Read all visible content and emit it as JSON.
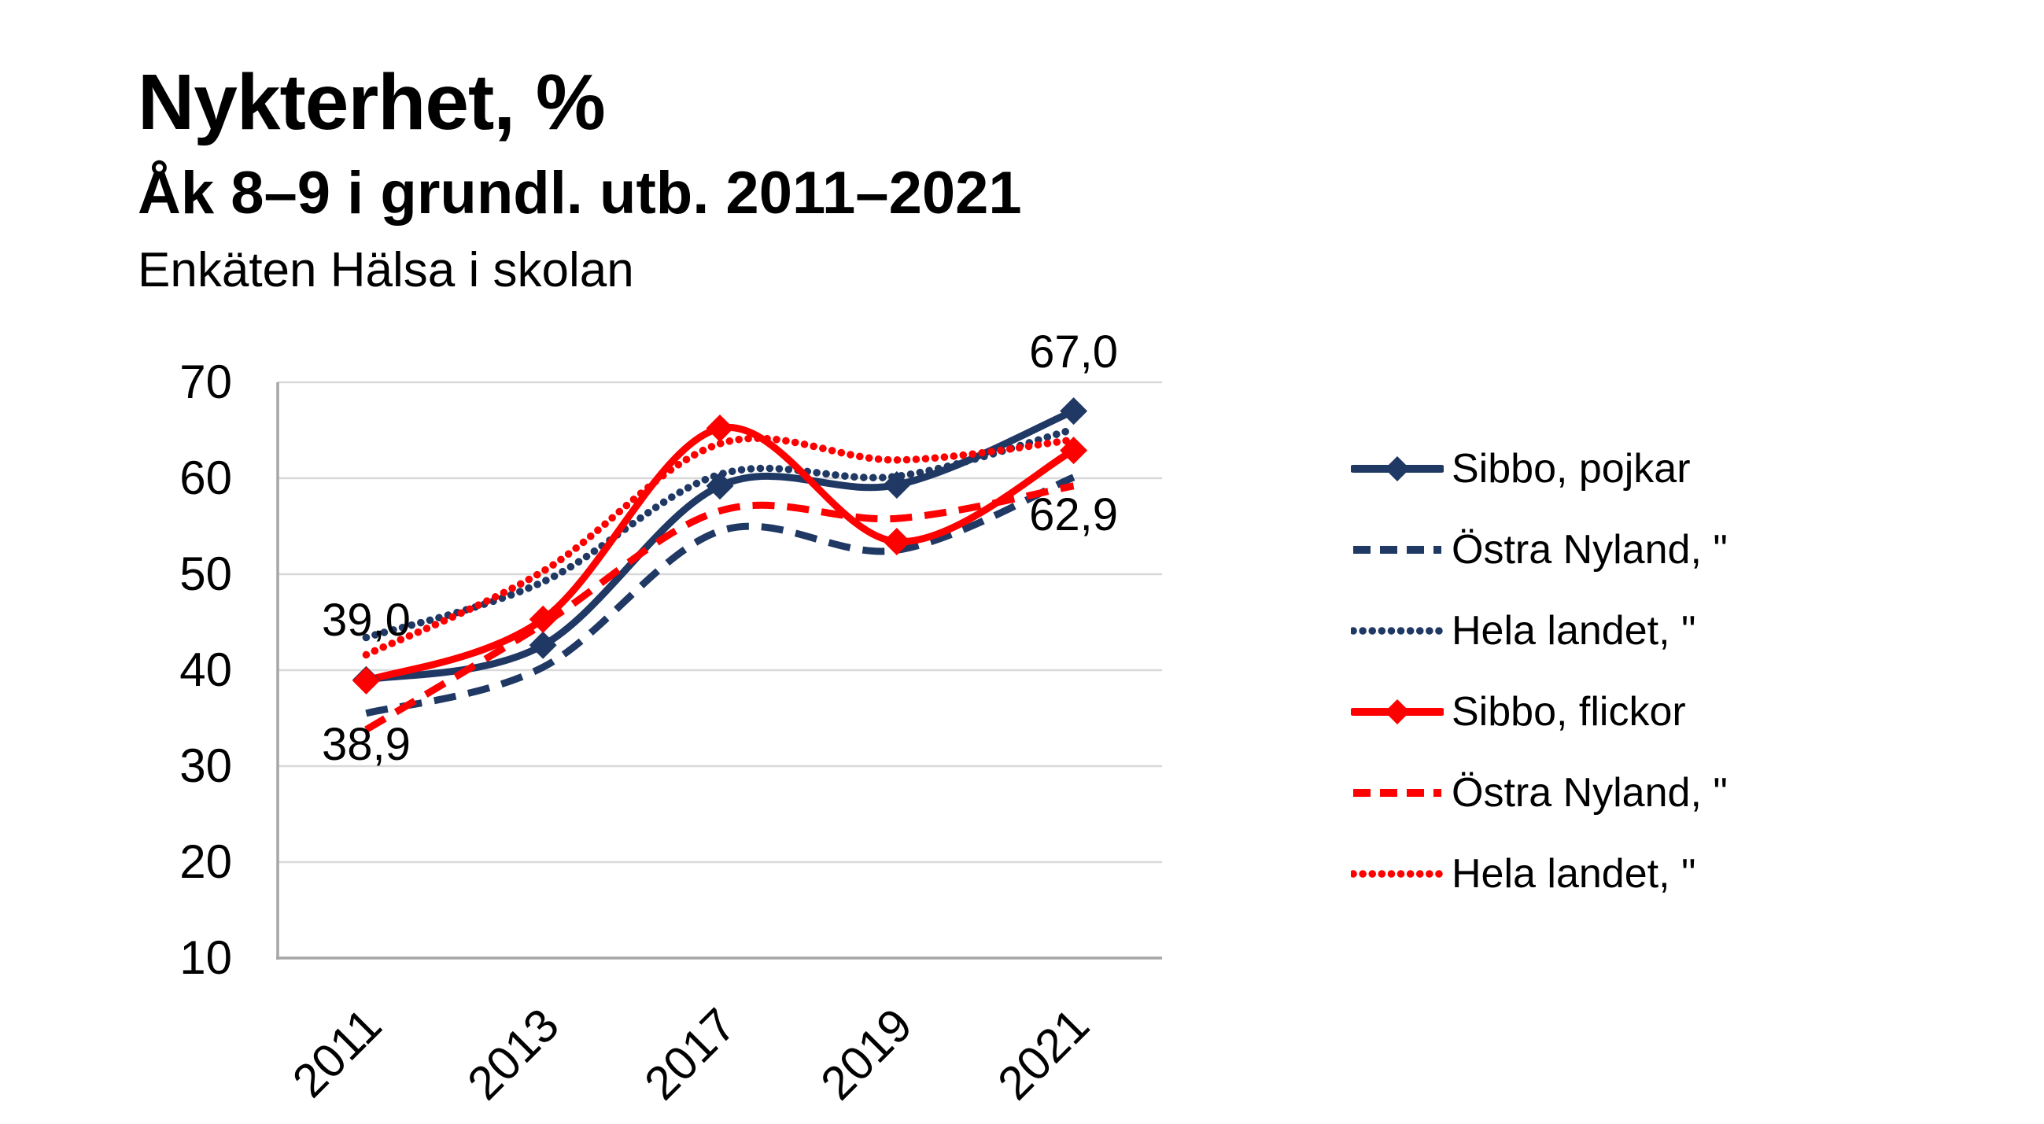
{
  "header": {
    "title": "Nykterhet, %",
    "subtitle": "Åk 8–9 i grundl. utb. 2011–2021",
    "survey": "Enkäten Hälsa i skolan"
  },
  "chart_data": {
    "type": "line",
    "title": "Nykterhet, %",
    "subtitle": "Åk 8–9 i grundl. utb. 2011–2021",
    "source_label": "Enkäten Hälsa i skolan",
    "categories": [
      "2011",
      "2013",
      "2017",
      "2019",
      "2021"
    ],
    "xlabel": "",
    "ylabel": "",
    "y_axis": {
      "min": 10,
      "max": 70,
      "step": 10,
      "ticks": [
        "70",
        "60",
        "50",
        "40",
        "30",
        "20",
        "10"
      ]
    },
    "grid": true,
    "smooth": true,
    "legend_position": "right",
    "series": [
      {
        "name": "Sibbo, pojkar",
        "color": "#1f3864",
        "style": "solid",
        "marker": "diamond",
        "values": [
          39.0,
          42.6,
          59.2,
          59.3,
          67.0
        ]
      },
      {
        "name": "Östra Nyland, \"",
        "color": "#1f3864",
        "style": "dashed",
        "marker": "none",
        "values": [
          35.5,
          40.3,
          54.5,
          52.5,
          60.1
        ]
      },
      {
        "name": "Hela landet, \"",
        "color": "#1f3864",
        "style": "dotted",
        "marker": "none",
        "values": [
          43.4,
          49.2,
          60.4,
          60.2,
          65.1
        ]
      },
      {
        "name": "Sibbo, flickor",
        "color": "#ff0000",
        "style": "solid",
        "marker": "diamond",
        "values": [
          38.9,
          45.3,
          65.2,
          53.4,
          62.9
        ]
      },
      {
        "name": "Östra Nyland, \"",
        "color": "#ff0000",
        "style": "dashed",
        "marker": "none",
        "values": [
          33.8,
          44.8,
          56.6,
          55.8,
          59.2
        ]
      },
      {
        "name": "Hela landet, \"",
        "color": "#ff0000",
        "style": "dotted",
        "marker": "none",
        "values": [
          41.6,
          50.3,
          63.6,
          61.9,
          64.0
        ]
      }
    ],
    "annotations": [
      {
        "text": "39,0",
        "series": 0,
        "point": 0,
        "placement": "above"
      },
      {
        "text": "38,9",
        "series": 3,
        "point": 0,
        "placement": "below"
      },
      {
        "text": "67,0",
        "series": 0,
        "point": 4,
        "placement": "above"
      },
      {
        "text": "62,9",
        "series": 3,
        "point": 4,
        "placement": "below"
      }
    ],
    "colors": {
      "grid": "#d9d9d9",
      "axis": "#a6a6a6",
      "text": "#000000",
      "background": "#ffffff"
    }
  }
}
